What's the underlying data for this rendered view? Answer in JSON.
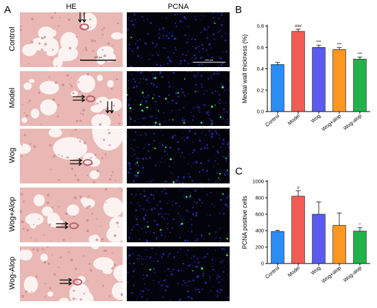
{
  "panel_letters": [
    "A",
    "B",
    "C"
  ],
  "columns": [
    "HE",
    "PCNA"
  ],
  "rows": [
    "Control",
    "Model",
    "Wog",
    "Wog+Alop",
    "Wog-Alop"
  ],
  "scalebars": {
    "he": "100 μm",
    "pcna": "200 μm"
  },
  "colors": {
    "Control": "#2a8cf5",
    "Model": "#f25c54",
    "Wog": "#5b5bf0",
    "Wog+alop": "#ff9620",
    "Wog-alop": "#22b24c",
    "he_tissue": "#e9b8b4",
    "pcna_bg": "#03030c"
  },
  "chart_data": [
    {
      "type": "bar",
      "panel": "B",
      "categories": [
        "Control",
        "Model",
        "Wog",
        "Wog+alop",
        "Wog-alop"
      ],
      "values": [
        0.44,
        0.75,
        0.6,
        0.58,
        0.49
      ],
      "errors": [
        0.02,
        0.02,
        0.02,
        0.02,
        0.02
      ],
      "significance": [
        "",
        "###",
        "***",
        "***",
        "***"
      ],
      "ylabel": "Medial wall thickness (%)",
      "xlabel": "",
      "ylim": [
        0,
        0.8
      ],
      "yticks": [
        "0.0",
        "0.2",
        "0.4",
        "0.6",
        "0.8"
      ]
    },
    {
      "type": "bar",
      "panel": "C",
      "categories": [
        "Control",
        "Model",
        "Wog",
        "Wog+alop",
        "Wog-alop"
      ],
      "values": [
        390,
        820,
        600,
        465,
        395
      ],
      "errors": [
        15,
        65,
        150,
        150,
        40
      ],
      "significance": [
        "",
        "#",
        "",
        "",
        "*"
      ],
      "ylabel": "PCNA positive cells",
      "xlabel": "",
      "ylim": [
        0,
        1000
      ],
      "yticks": [
        "0",
        "200",
        "400",
        "600",
        "800",
        "1000"
      ]
    }
  ]
}
